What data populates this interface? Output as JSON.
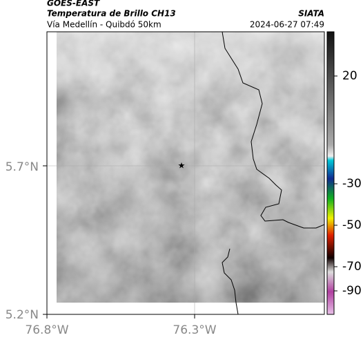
{
  "header": {
    "title": "GOES-EAST",
    "subtitle": "Temperatura de Brillo CH13",
    "region": "Vía Medellín - Quibdó 50km",
    "source": "SIATA",
    "datetime": "2024-06-27 07:49"
  },
  "map": {
    "lat_ticks": [
      "5.7°N",
      "5.2°N"
    ],
    "lon_ticks": [
      "76.8°W",
      "76.3°W"
    ]
  },
  "colorbar": {
    "ticks": [
      20,
      -30,
      -50,
      -70,
      -90
    ]
  }
}
